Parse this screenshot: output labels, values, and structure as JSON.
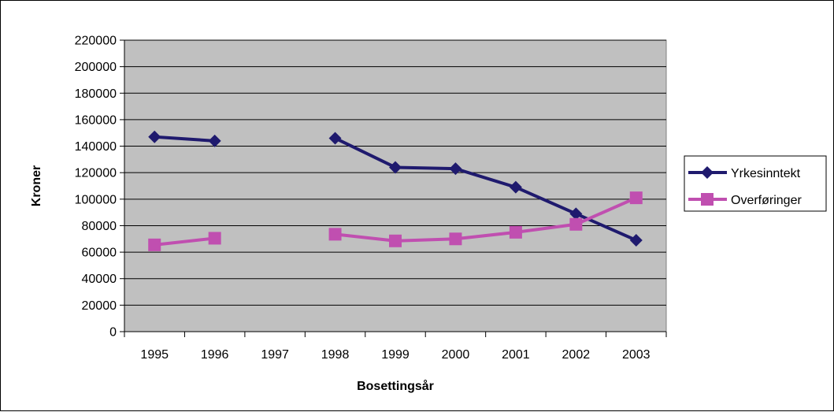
{
  "chart_data": {
    "type": "line",
    "title": "",
    "xlabel": "Bosettingsår",
    "ylabel": "Kroner",
    "categories": [
      "1995",
      "1996",
      "1997",
      "1998",
      "1999",
      "2000",
      "2001",
      "2002",
      "2003"
    ],
    "ylim": [
      0,
      220000
    ],
    "yticks": [
      "0",
      "20000",
      "40000",
      "60000",
      "80000",
      "100000",
      "120000",
      "140000",
      "160000",
      "180000",
      "200000",
      "220000"
    ],
    "grid": true,
    "legend_position": "right",
    "plot_background": "#c0c0c0",
    "series": [
      {
        "name": "Yrkesinntekt",
        "color": "#1f1a6e",
        "marker": "diamond",
        "values": [
          147000,
          144000,
          null,
          146000,
          124000,
          123000,
          109000,
          89000,
          69000
        ]
      },
      {
        "name": "Overføringer",
        "color": "#c04fb0",
        "marker": "square",
        "values": [
          65500,
          70500,
          null,
          73500,
          68500,
          70000,
          75000,
          81000,
          101000
        ]
      }
    ]
  }
}
